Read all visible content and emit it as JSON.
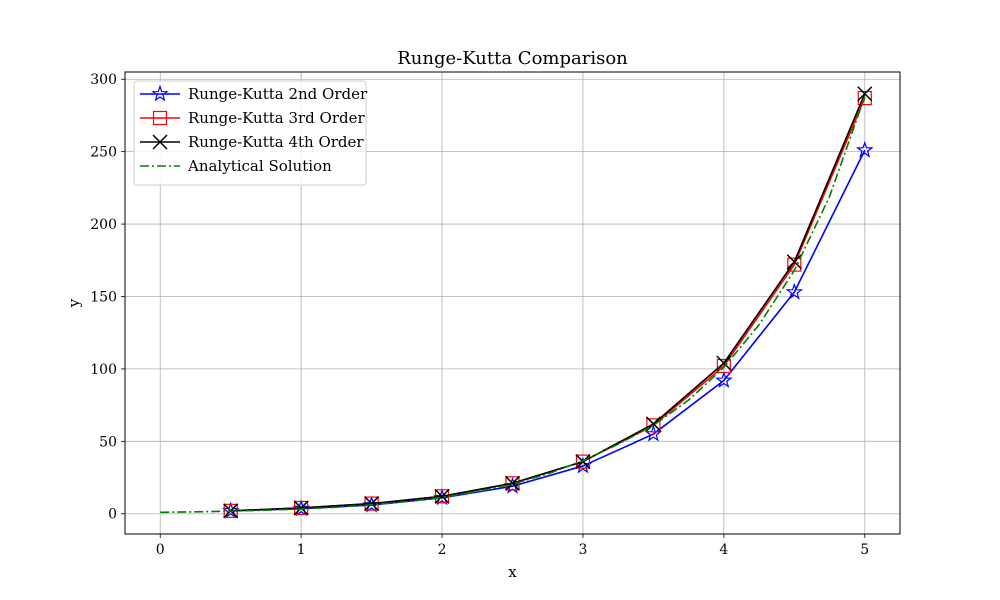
{
  "chart_data": {
    "type": "line",
    "title": "Runge-Kutta Comparison",
    "xlabel": "x",
    "ylabel": "y",
    "xlim": [
      -0.25,
      5.25
    ],
    "ylim": [
      -14,
      305
    ],
    "xticks": [
      0,
      1,
      2,
      3,
      4,
      5
    ],
    "yticks": [
      0,
      50,
      100,
      150,
      200,
      250,
      300
    ],
    "grid": true,
    "legend_position": "upper-left",
    "series": [
      {
        "name": "Runge-Kutta 2nd Order",
        "color": "#0000ff",
        "marker": "star",
        "line_style": "solid",
        "x": [
          0.5,
          1.0,
          1.5,
          2.0,
          2.5,
          3.0,
          3.5,
          4.0,
          4.5,
          5.0
        ],
        "y": [
          2.0,
          3.5,
          6.0,
          11.0,
          19.0,
          33.0,
          55.0,
          92.0,
          153.0,
          251.0
        ]
      },
      {
        "name": "Runge-Kutta 3rd Order",
        "color": "#ff0000",
        "marker": "square",
        "line_style": "solid",
        "x": [
          0.5,
          1.0,
          1.5,
          2.0,
          2.5,
          3.0,
          3.5,
          4.0,
          4.5,
          5.0
        ],
        "y": [
          2.0,
          4.0,
          7.0,
          12.0,
          21.0,
          36.0,
          61.0,
          102.0,
          172.0,
          287.0
        ]
      },
      {
        "name": "Runge-Kutta 4th Order",
        "color": "#000000",
        "marker": "x",
        "line_style": "solid",
        "x": [
          0.5,
          1.0,
          1.5,
          2.0,
          2.5,
          3.0,
          3.5,
          4.0,
          4.5,
          5.0
        ],
        "y": [
          2.0,
          4.0,
          7.0,
          12.0,
          21.0,
          36.0,
          62.0,
          104.0,
          174.0,
          290.0
        ]
      },
      {
        "name": "Analytical Solution",
        "color": "#008000",
        "marker": "none",
        "line_style": "dashdot",
        "x": [
          0,
          0.25,
          0.5,
          0.75,
          1.0,
          1.25,
          1.5,
          1.75,
          2.0,
          2.25,
          2.5,
          2.75,
          3.0,
          3.25,
          3.5,
          3.75,
          4.0,
          4.25,
          4.5,
          4.75,
          5.0
        ],
        "y": [
          1.0,
          1.3,
          1.8,
          2.4,
          3.3,
          4.5,
          6.2,
          8.4,
          11.3,
          15.3,
          20.5,
          27.5,
          36.5,
          48.0,
          61.0,
          78.5,
          101.0,
          130.5,
          168.0,
          219.0,
          288.0
        ]
      }
    ]
  }
}
